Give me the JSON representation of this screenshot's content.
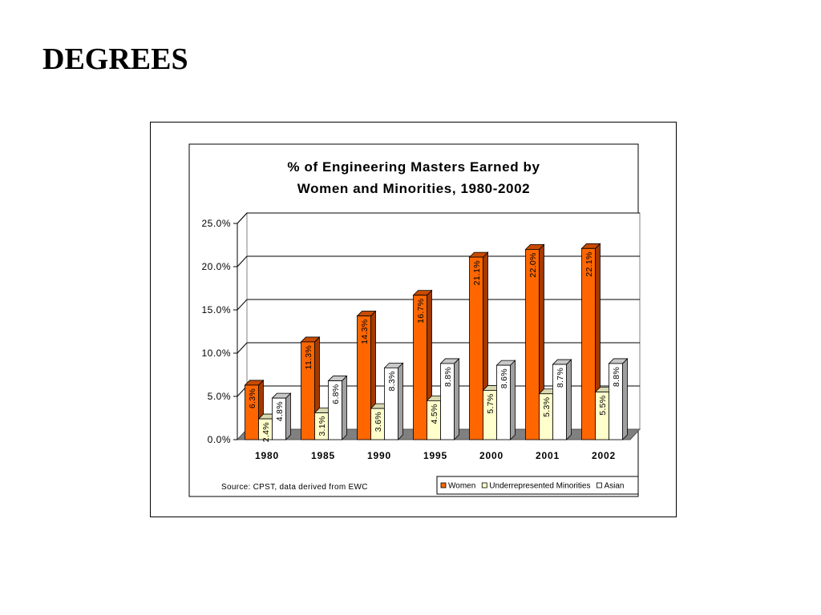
{
  "slide": {
    "title": "DEGREES"
  },
  "chart_data": {
    "type": "bar",
    "title_lines": [
      "% of Engineering Masters Earned by",
      "Women and Minorities, 1980-2002"
    ],
    "categories": [
      "1980",
      "1985",
      "1990",
      "1995",
      "2000",
      "2001",
      "2002"
    ],
    "series": [
      {
        "name": "Women",
        "values": [
          6.3,
          11.3,
          14.3,
          16.7,
          21.1,
          22.0,
          22.1
        ],
        "labels": [
          "6.3%",
          "11.3%",
          "14.3%",
          "16.7%",
          "21.1%",
          "22.0%",
          "22.1%"
        ],
        "color": "#FF6600",
        "side_color": "#A33A00",
        "top_color": "#C84A00"
      },
      {
        "name": "Underrepresented Minorities",
        "values": [
          2.4,
          3.1,
          3.6,
          4.5,
          5.7,
          5.3,
          5.5
        ],
        "labels": [
          "2.4%",
          "3.1%",
          "3.6%",
          "4.5%",
          "5.7%",
          "5.3%",
          "5.5%"
        ],
        "color": "#FFFFCC",
        "side_color": "#BDBD95",
        "top_color": "#D9D9B0"
      },
      {
        "name": "Asian",
        "values": [
          4.8,
          6.8,
          8.3,
          8.8,
          8.6,
          8.7,
          8.8
        ],
        "labels": [
          "4.8%",
          "6.8%",
          "8.3%",
          "8.8%",
          "8.6%",
          "8.7%",
          "8.8%"
        ],
        "color": "#FFFFFF",
        "side_color": "#A0A0A0",
        "top_color": "#C8C8C8"
      }
    ],
    "yticks": [
      "0.0%",
      "5.0%",
      "10.0%",
      "15.0%",
      "20.0%",
      "25.0%"
    ],
    "ylim": [
      0,
      25
    ],
    "xlabel": "",
    "ylabel": "",
    "grid": true,
    "three_d": true,
    "legend_position": "bottom-right",
    "source": "Source:  CPST, data derived from EWC"
  }
}
